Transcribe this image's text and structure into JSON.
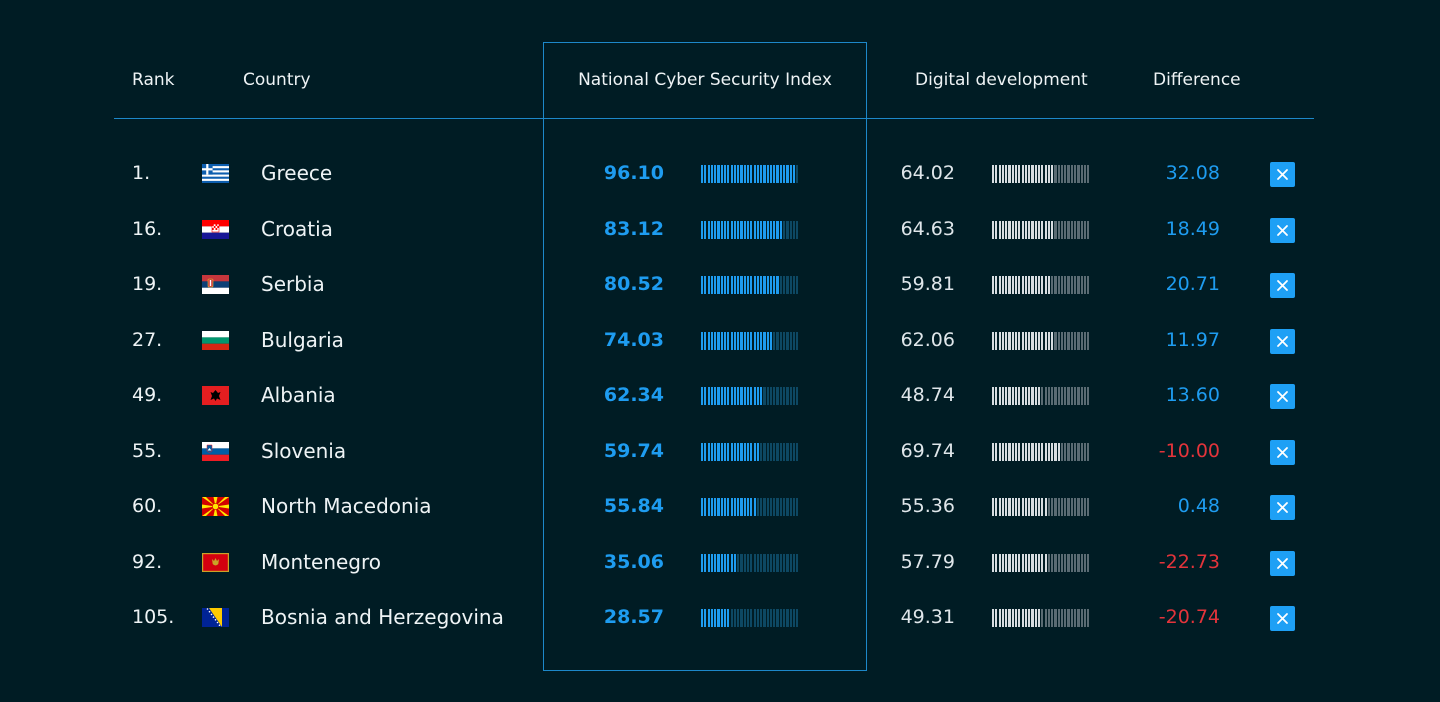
{
  "header": {
    "rank": "Rank",
    "country": "Country",
    "ncsi": "National Cyber Security Index",
    "digital": "Digital development",
    "difference": "Difference"
  },
  "colors": {
    "background": "#001c24",
    "accent": "#1e9cf0",
    "negative": "#e3343b"
  },
  "rows": [
    {
      "rank": "1.",
      "flag": "greece-flag-icon",
      "country": "Greece",
      "ncsi": "96.10",
      "ncsi_value": 96.1,
      "digital": "64.02",
      "digital_value": 64.02,
      "difference": "32.08",
      "negative": false
    },
    {
      "rank": "16.",
      "flag": "croatia-flag-icon",
      "country": "Croatia",
      "ncsi": "83.12",
      "ncsi_value": 83.12,
      "digital": "64.63",
      "digital_value": 64.63,
      "difference": "18.49",
      "negative": false
    },
    {
      "rank": "19.",
      "flag": "serbia-flag-icon",
      "country": "Serbia",
      "ncsi": "80.52",
      "ncsi_value": 80.52,
      "digital": "59.81",
      "digital_value": 59.81,
      "difference": "20.71",
      "negative": false
    },
    {
      "rank": "27.",
      "flag": "bulgaria-flag-icon",
      "country": "Bulgaria",
      "ncsi": "74.03",
      "ncsi_value": 74.03,
      "digital": "62.06",
      "digital_value": 62.06,
      "difference": "11.97",
      "negative": false
    },
    {
      "rank": "49.",
      "flag": "albania-flag-icon",
      "country": "Albania",
      "ncsi": "62.34",
      "ncsi_value": 62.34,
      "digital": "48.74",
      "digital_value": 48.74,
      "difference": "13.60",
      "negative": false
    },
    {
      "rank": "55.",
      "flag": "slovenia-flag-icon",
      "country": "Slovenia",
      "ncsi": "59.74",
      "ncsi_value": 59.74,
      "digital": "69.74",
      "digital_value": 69.74,
      "difference": "-10.00",
      "negative": true
    },
    {
      "rank": "60.",
      "flag": "north-macedonia-flag-icon",
      "country": "North Macedonia",
      "ncsi": "55.84",
      "ncsi_value": 55.84,
      "digital": "55.36",
      "digital_value": 55.36,
      "difference": "0.48",
      "negative": false
    },
    {
      "rank": "92.",
      "flag": "montenegro-flag-icon",
      "country": "Montenegro",
      "ncsi": "35.06",
      "ncsi_value": 35.06,
      "digital": "57.79",
      "digital_value": 57.79,
      "difference": "-22.73",
      "negative": true
    },
    {
      "rank": "105.",
      "flag": "bosnia-and-herzegovina-flag-icon",
      "country": "Bosnia and Herzegovina",
      "ncsi": "28.57",
      "ncsi_value": 28.57,
      "digital": "49.31",
      "digital_value": 49.31,
      "difference": "-20.74",
      "negative": true
    }
  ]
}
